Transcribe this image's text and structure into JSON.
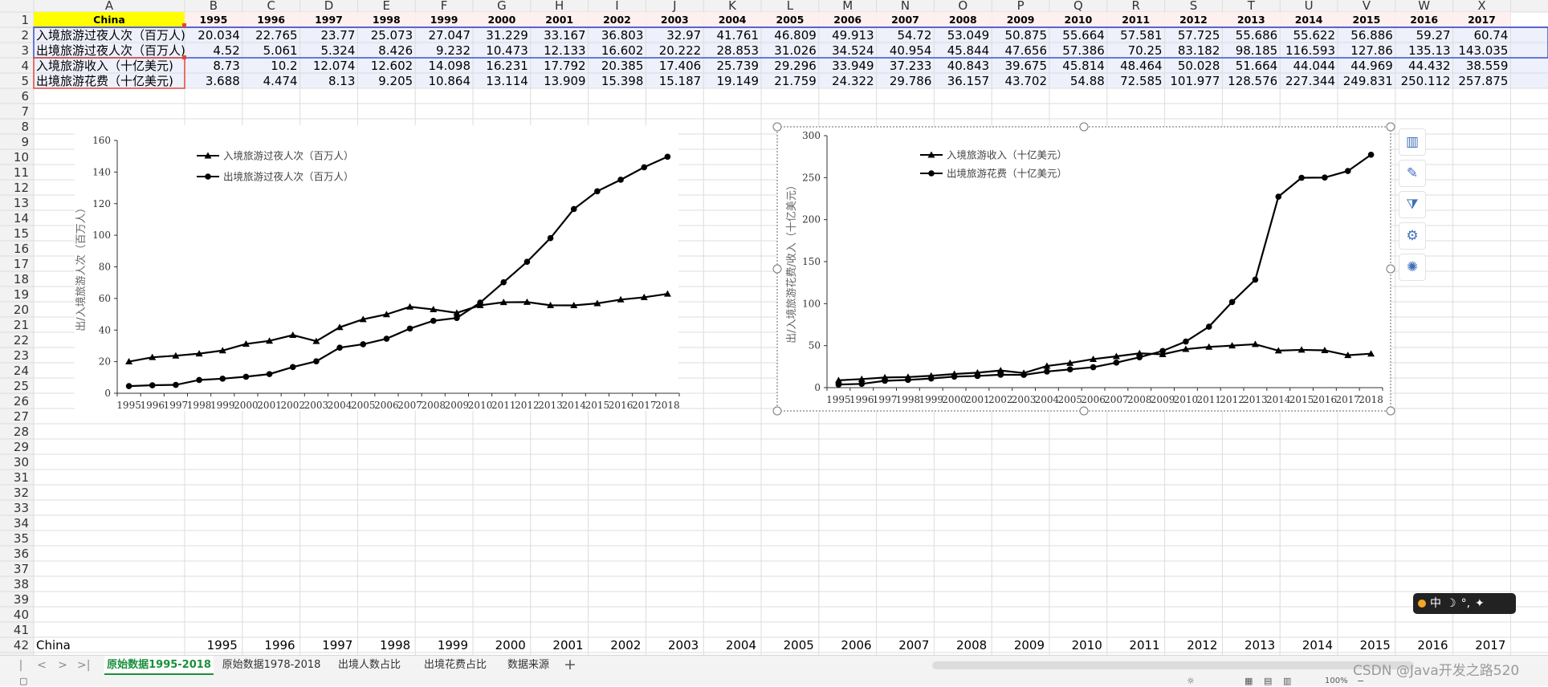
{
  "columns": [
    "A",
    "B",
    "C",
    "D",
    "E",
    "F",
    "G",
    "H",
    "I",
    "J",
    "K",
    "L",
    "M",
    "N",
    "O",
    "P",
    "Q",
    "R",
    "S",
    "T",
    "U",
    "V",
    "W",
    "X"
  ],
  "row_numbers": [
    "1",
    "2",
    "3",
    "4",
    "5",
    "6",
    "7",
    "8",
    "9",
    "10",
    "11",
    "12",
    "13",
    "14",
    "15",
    "16",
    "17",
    "18",
    "19",
    "20",
    "21",
    "22",
    "23",
    "24",
    "25",
    "26",
    "27",
    "28",
    "29",
    "30",
    "31",
    "32",
    "33",
    "34",
    "35",
    "36",
    "37",
    "38",
    "39",
    "40",
    "41",
    "42"
  ],
  "table": {
    "corner_label": "China",
    "years": [
      "1995",
      "1996",
      "1997",
      "1998",
      "1999",
      "2000",
      "2001",
      "2002",
      "2003",
      "2004",
      "2005",
      "2006",
      "2007",
      "2008",
      "2009",
      "2010",
      "2011",
      "2012",
      "2013",
      "2014",
      "2015",
      "2016",
      "2017"
    ],
    "rows": [
      {
        "label": "入境旅游过夜人次（百万人)",
        "values": [
          "20.034",
          "22.765",
          "23.77",
          "25.073",
          "27.047",
          "31.229",
          "33.167",
          "36.803",
          "32.97",
          "41.761",
          "46.809",
          "49.913",
          "54.72",
          "53.049",
          "50.875",
          "55.664",
          "57.581",
          "57.725",
          "55.686",
          "55.622",
          "56.886",
          "59.27",
          "60.74"
        ]
      },
      {
        "label": "出境旅游过夜人次（百万人)",
        "values": [
          "4.52",
          "5.061",
          "5.324",
          "8.426",
          "9.232",
          "10.473",
          "12.133",
          "16.602",
          "20.222",
          "28.853",
          "31.026",
          "34.524",
          "40.954",
          "45.844",
          "47.656",
          "57.386",
          "70.25",
          "83.182",
          "98.185",
          "116.593",
          "127.86",
          "135.13",
          "143.035"
        ]
      },
      {
        "label": "入境旅游收入（十亿美元)",
        "values": [
          "8.73",
          "10.2",
          "12.074",
          "12.602",
          "14.098",
          "16.231",
          "17.792",
          "20.385",
          "17.406",
          "25.739",
          "29.296",
          "33.949",
          "37.233",
          "40.843",
          "39.675",
          "45.814",
          "48.464",
          "50.028",
          "51.664",
          "44.044",
          "44.969",
          "44.432",
          "38.559"
        ]
      },
      {
        "label": "出境旅游花费（十亿美元)",
        "values": [
          "3.688",
          "4.474",
          "8.13",
          "9.205",
          "10.864",
          "13.114",
          "13.909",
          "15.398",
          "15.187",
          "19.149",
          "21.759",
          "24.322",
          "29.786",
          "36.157",
          "43.702",
          "54.88",
          "72.585",
          "101.977",
          "128.576",
          "227.344",
          "249.831",
          "250.112",
          "257.875"
        ]
      }
    ],
    "row42_label": "China",
    "row42_years": [
      "1995",
      "1996",
      "1997",
      "1998",
      "1999",
      "2000",
      "2001",
      "2002",
      "2003",
      "2004",
      "2005",
      "2006",
      "2007",
      "2008",
      "2009",
      "2010",
      "2011",
      "2012",
      "2013",
      "2014",
      "2015",
      "2016",
      "2017"
    ]
  },
  "chart_data": [
    {
      "type": "line",
      "x": [
        "1995",
        "1996",
        "1997",
        "1998",
        "1999",
        "2000",
        "2001",
        "2002",
        "2003",
        "2004",
        "2005",
        "2006",
        "2007",
        "2008",
        "2009",
        "2010",
        "2011",
        "2012",
        "2013",
        "2014",
        "2015",
        "2016",
        "2017",
        "2018"
      ],
      "series": [
        {
          "name": "入境旅游过夜人次（百万人）",
          "marker": "triangle",
          "values": [
            20.034,
            22.765,
            23.77,
            25.073,
            27.047,
            31.229,
            33.167,
            36.803,
            32.97,
            41.761,
            46.809,
            49.913,
            54.72,
            53.049,
            50.875,
            55.664,
            57.581,
            57.725,
            55.686,
            55.622,
            56.886,
            59.27,
            60.74,
            62.9
          ]
        },
        {
          "name": "出境旅游过夜人次（百万人）",
          "marker": "circle",
          "values": [
            4.52,
            5.061,
            5.324,
            8.426,
            9.232,
            10.473,
            12.133,
            16.602,
            20.222,
            28.853,
            31.026,
            34.524,
            40.954,
            45.844,
            47.656,
            57.386,
            70.25,
            83.182,
            98.185,
            116.593,
            127.86,
            135.13,
            143.035,
            149.7
          ]
        }
      ],
      "title": "",
      "xlabel": "",
      "ylabel": "出/入境旅游人次（百万人）",
      "ylim": [
        0,
        160
      ],
      "yticks": [
        "0",
        "20",
        "40",
        "60",
        "80",
        "100",
        "120",
        "140",
        "160"
      ],
      "grid": false,
      "legend": "top-left"
    },
    {
      "type": "line",
      "x": [
        "1995",
        "1996",
        "1997",
        "1998",
        "1999",
        "2000",
        "2001",
        "2002",
        "2003",
        "2004",
        "2005",
        "2006",
        "2007",
        "2008",
        "2009",
        "2010",
        "2011",
        "2012",
        "2013",
        "2014",
        "2015",
        "2016",
        "2017",
        "2018"
      ],
      "series": [
        {
          "name": "入境旅游收入（十亿美元）",
          "marker": "triangle",
          "values": [
            8.73,
            10.2,
            12.074,
            12.602,
            14.098,
            16.231,
            17.792,
            20.385,
            17.406,
            25.739,
            29.296,
            33.949,
            37.233,
            40.843,
            39.675,
            45.814,
            48.464,
            50.028,
            51.664,
            44.044,
            44.969,
            44.432,
            38.559,
            40.4
          ]
        },
        {
          "name": "出境旅游花费（十亿美元）",
          "marker": "circle",
          "values": [
            3.688,
            4.474,
            8.13,
            9.205,
            10.864,
            13.114,
            13.909,
            15.398,
            15.187,
            19.149,
            21.759,
            24.322,
            29.786,
            36.157,
            43.702,
            54.88,
            72.585,
            101.977,
            128.576,
            227.344,
            249.831,
            250.112,
            257.875,
            277.3
          ]
        }
      ],
      "title": "",
      "xlabel": "",
      "ylabel": "出/入境旅游花费/收入（十亿美元）",
      "ylim": [
        0,
        300
      ],
      "yticks": [
        "0",
        "50",
        "100",
        "150",
        "200",
        "250",
        "300"
      ],
      "grid": false,
      "legend": "top-left"
    }
  ],
  "sheet_tabs": [
    "原始数据1995-2018",
    "原始数据1978-2018",
    "出境人数占比",
    "出境花费占比",
    "数据来源"
  ],
  "active_tab": "原始数据1995-2018",
  "add_tab_label": "+",
  "chart_tools": [
    "chart-elements-icon",
    "chart-style-icon",
    "chart-filter-icon",
    "chart-settings-icon",
    "chart-ideas-icon"
  ],
  "ime": {
    "mode": "中",
    "moon": "☽",
    "punct": "°,",
    "tool": "✦"
  },
  "status": {
    "zoom": "100%"
  },
  "watermark": "CSDN @Java开发之路520",
  "colors": {
    "header_bg": "#ffff00",
    "row_highlight": "#eef0fb",
    "selection_red": "#e0483a",
    "selection_blue": "#3c52c9",
    "active_tab": "#1a8f3c"
  }
}
